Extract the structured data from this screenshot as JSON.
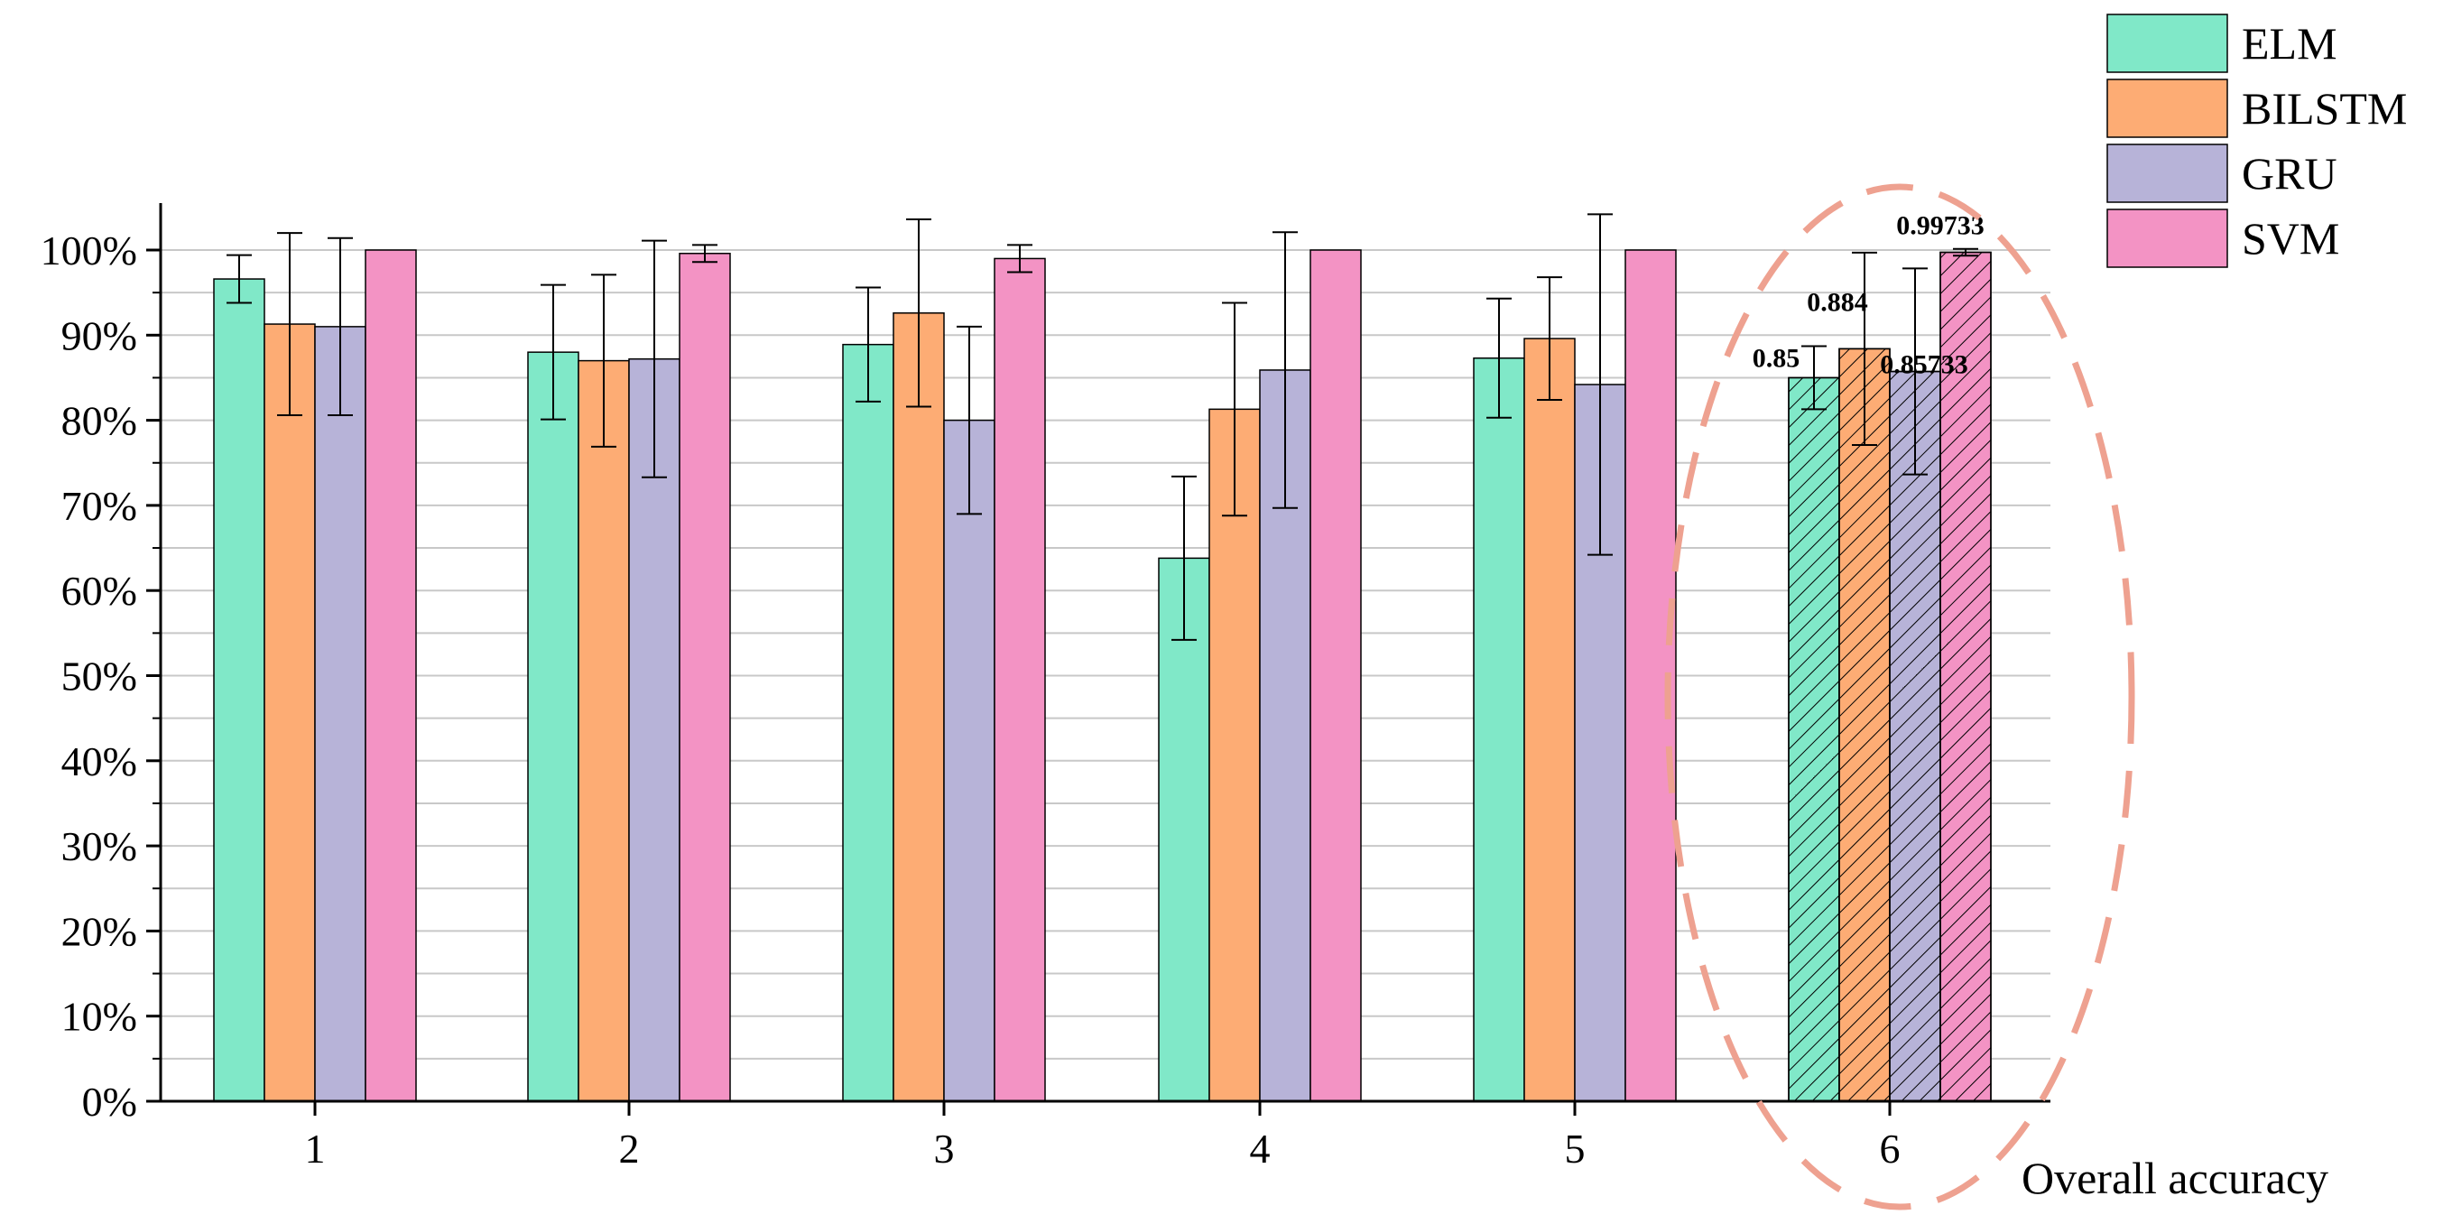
{
  "chart_data": {
    "type": "bar",
    "categories": [
      "1",
      "2",
      "3",
      "4",
      "5",
      "6"
    ],
    "series": [
      {
        "name": "ELM",
        "color": "#80e8c8",
        "values": [
          0.966,
          0.88,
          0.889,
          0.638,
          0.873,
          0.85
        ],
        "errors": [
          0.028,
          0.079,
          0.067,
          0.096,
          0.07,
          0.037
        ]
      },
      {
        "name": "BILSTM",
        "color": "#fdac74",
        "values": [
          0.913,
          0.87,
          0.926,
          0.813,
          0.896,
          0.884
        ],
        "errors": [
          0.107,
          0.101,
          0.11,
          0.125,
          0.072,
          0.113
        ]
      },
      {
        "name": "GRU",
        "color": "#b7b3d8",
        "values": [
          0.91,
          0.872,
          0.8,
          0.859,
          0.842,
          0.85733
        ],
        "errors": [
          0.104,
          0.139,
          0.11,
          0.162,
          0.2,
          0.121
        ]
      },
      {
        "name": "SVM",
        "color": "#f393c4",
        "values": [
          1.0,
          0.996,
          0.99,
          1.0,
          1.0,
          0.99733
        ],
        "errors": [
          0,
          0.01,
          0.016,
          0,
          0,
          0.004
        ]
      }
    ],
    "data_labels": [
      "0.85",
      "0.884",
      "0.85733",
      "0.99733"
    ],
    "highlight_category": "6",
    "highlight_color": "#eea190",
    "y_ticks": [
      "0%",
      "10%",
      "20%",
      "30%",
      "40%",
      "50%",
      "60%",
      "70%",
      "80%",
      "90%",
      "100%"
    ],
    "ylim": [
      0,
      1.05
    ],
    "grid": true,
    "legend_position": "top-right",
    "xlabel": "Overall accuracy",
    "ylabel": ""
  }
}
